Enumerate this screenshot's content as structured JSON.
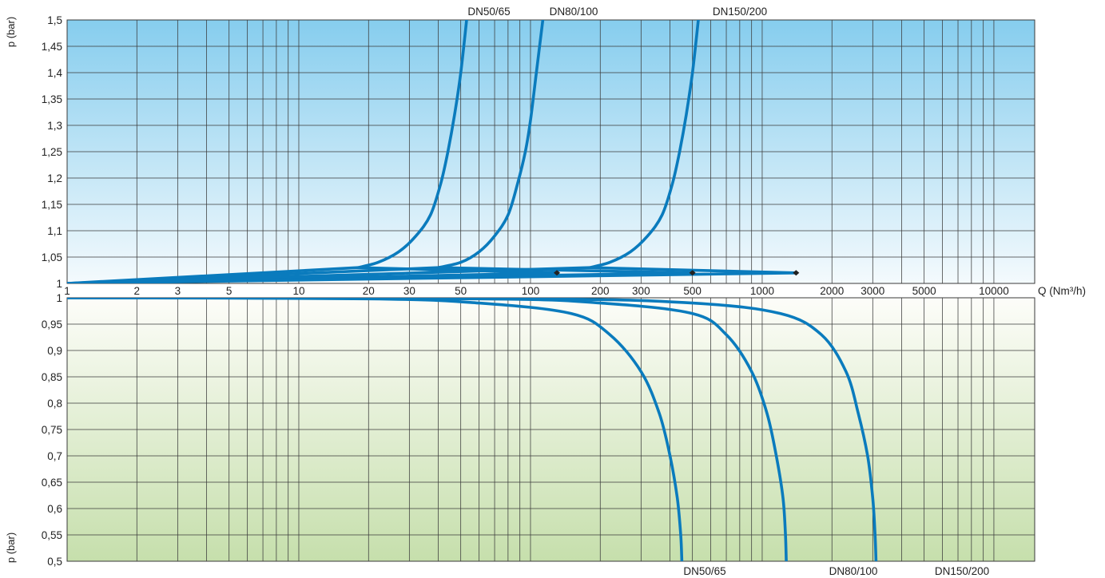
{
  "chart_data": [
    {
      "type": "line",
      "panel": "upper",
      "title": "",
      "xlabel": "Q (Nm³/h)",
      "ylabel": "p (bar)",
      "x_scale": "log",
      "xlim": [
        1,
        15000
      ],
      "ylim": [
        1,
        1.5
      ],
      "grid": true,
      "x_ticks": [
        1,
        2,
        3,
        5,
        10,
        20,
        30,
        50,
        100,
        200,
        300,
        500,
        1000,
        2000,
        3000,
        5000,
        10000
      ],
      "x_tick_labels": [
        "1",
        "2",
        "3",
        "5",
        "10",
        "20",
        "30",
        "50",
        "100",
        "200",
        "300",
        "500",
        "1000",
        "2000",
        "3000",
        "5000",
        "10000"
      ],
      "y_ticks": [
        1,
        1.05,
        1.1,
        1.15,
        1.2,
        1.25,
        1.3,
        1.35,
        1.4,
        1.45,
        1.5
      ],
      "y_tick_labels": [
        "1",
        "1,05",
        "1,1",
        "1,15",
        "1,2",
        "1,25",
        "1,3",
        "1,35",
        "1,4",
        "1,45",
        "1,5"
      ],
      "series": [
        {
          "name": "DN50/65",
          "points": [
            [
              1,
              1.0
            ],
            [
              18,
              1.03
            ],
            [
              130,
              1.02
            ],
            [
              1,
              1.0
            ],
            [
              18,
              1.03
            ],
            [
              22,
              1.04
            ],
            [
              27,
              1.06
            ],
            [
              32,
              1.09
            ],
            [
              37,
              1.13
            ],
            [
              41,
              1.19
            ],
            [
              44,
              1.25
            ],
            [
              47,
              1.32
            ],
            [
              50,
              1.4
            ],
            [
              53,
              1.5
            ]
          ],
          "end_marker": [
            130,
            1.02
          ]
        },
        {
          "name": "DN80/100",
          "points": [
            [
              1,
              1.0
            ],
            [
              40,
              1.03
            ],
            [
              500,
              1.02
            ],
            [
              1,
              1.0
            ],
            [
              40,
              1.03
            ],
            [
              50,
              1.04
            ],
            [
              60,
              1.06
            ],
            [
              70,
              1.09
            ],
            [
              80,
              1.13
            ],
            [
              88,
              1.19
            ],
            [
              95,
              1.25
            ],
            [
              100,
              1.31
            ],
            [
              106,
              1.4
            ],
            [
              113,
              1.5
            ]
          ],
          "end_marker": [
            500,
            1.02
          ]
        },
        {
          "name": "DN150/200",
          "points": [
            [
              1,
              1.0
            ],
            [
              180,
              1.03
            ],
            [
              1400,
              1.02
            ],
            [
              1,
              1.0
            ],
            [
              180,
              1.03
            ],
            [
              220,
              1.04
            ],
            [
              270,
              1.06
            ],
            [
              320,
              1.09
            ],
            [
              370,
              1.13
            ],
            [
              410,
              1.19
            ],
            [
              440,
              1.25
            ],
            [
              470,
              1.32
            ],
            [
              500,
              1.4
            ],
            [
              530,
              1.5
            ]
          ],
          "end_marker": [
            1400,
            1.02
          ]
        }
      ]
    },
    {
      "type": "line",
      "panel": "lower",
      "title": "",
      "xlabel": "Q (Nm³/h)",
      "ylabel": "p (bar)",
      "x_scale": "log",
      "xlim": [
        1,
        15000
      ],
      "ylim": [
        0.5,
        1
      ],
      "grid": true,
      "y_ticks": [
        0.5,
        0.55,
        0.6,
        0.65,
        0.7,
        0.75,
        0.8,
        0.85,
        0.9,
        0.95,
        1
      ],
      "y_tick_labels": [
        "0,5",
        "0,55",
        "0,6",
        "0,65",
        "0,7",
        "0,75",
        "0,8",
        "0,85",
        "0,9",
        "0,95",
        "1"
      ],
      "series": [
        {
          "name": "DN50/65",
          "points": [
            [
              1,
              1.0
            ],
            [
              20,
              0.998
            ],
            [
              60,
              0.99
            ],
            [
              150,
              0.97
            ],
            [
              220,
              0.93
            ],
            [
              300,
              0.86
            ],
            [
              360,
              0.78
            ],
            [
              400,
              0.7
            ],
            [
              430,
              0.62
            ],
            [
              445,
              0.55
            ],
            [
              450,
              0.5
            ]
          ]
        },
        {
          "name": "DN80/100",
          "points": [
            [
              1,
              1.0
            ],
            [
              60,
              0.998
            ],
            [
              200,
              0.99
            ],
            [
              500,
              0.97
            ],
            [
              700,
              0.93
            ],
            [
              900,
              0.86
            ],
            [
              1050,
              0.78
            ],
            [
              1150,
              0.7
            ],
            [
              1230,
              0.62
            ],
            [
              1260,
              0.55
            ],
            [
              1270,
              0.5
            ]
          ]
        },
        {
          "name": "DN150/200",
          "points": [
            [
              1,
              1.0
            ],
            [
              100,
              0.998
            ],
            [
              500,
              0.99
            ],
            [
              1200,
              0.97
            ],
            [
              1800,
              0.93
            ],
            [
              2300,
              0.86
            ],
            [
              2600,
              0.78
            ],
            [
              2850,
              0.7
            ],
            [
              3000,
              0.62
            ],
            [
              3070,
              0.55
            ],
            [
              3100,
              0.5
            ]
          ]
        }
      ]
    }
  ],
  "style": {
    "line_color": "#0a7bbd",
    "marker_color": "#222222",
    "grid_color": "#3a3a3a",
    "upper_bg_top": "#86cdee",
    "upper_bg_bottom": "#f4fafd",
    "lower_bg_top": "#fdfdf9",
    "lower_bg_bottom": "#c6dfac"
  }
}
